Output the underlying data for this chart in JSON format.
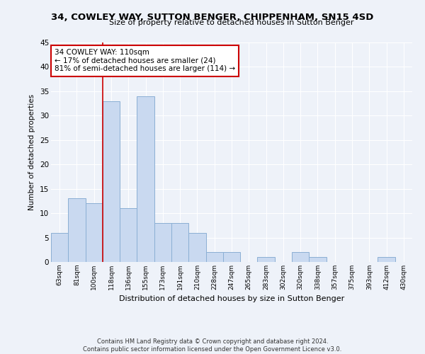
{
  "title": "34, COWLEY WAY, SUTTON BENGER, CHIPPENHAM, SN15 4SD",
  "subtitle": "Size of property relative to detached houses in Sutton Benger",
  "xlabel": "Distribution of detached houses by size in Sutton Benger",
  "ylabel": "Number of detached properties",
  "categories": [
    "63sqm",
    "81sqm",
    "100sqm",
    "118sqm",
    "136sqm",
    "155sqm",
    "173sqm",
    "191sqm",
    "210sqm",
    "228sqm",
    "247sqm",
    "265sqm",
    "283sqm",
    "302sqm",
    "320sqm",
    "338sqm",
    "357sqm",
    "375sqm",
    "393sqm",
    "412sqm",
    "430sqm"
  ],
  "values": [
    6,
    13,
    12,
    33,
    11,
    34,
    8,
    8,
    6,
    2,
    2,
    0,
    1,
    0,
    2,
    1,
    0,
    0,
    0,
    1,
    0
  ],
  "bar_color": "#c9d9f0",
  "bar_edge_color": "#8bafd4",
  "ylim": [
    0,
    45
  ],
  "yticks": [
    0,
    5,
    10,
    15,
    20,
    25,
    30,
    35,
    40,
    45
  ],
  "vline_x": 2.5,
  "vline_color": "#cc0000",
  "annotation_text1": "34 COWLEY WAY: 110sqm",
  "annotation_text2": "← 17% of detached houses are smaller (24)",
  "annotation_text3": "81% of semi-detached houses are larger (114) →",
  "annotation_box_color": "#ffffff",
  "annotation_box_edge_color": "#cc0000",
  "footer1": "Contains HM Land Registry data © Crown copyright and database right 2024.",
  "footer2": "Contains public sector information licensed under the Open Government Licence v3.0.",
  "background_color": "#eef2f9",
  "grid_color": "#ffffff",
  "title_fontsize": 9.5,
  "subtitle_fontsize": 8,
  "ylabel_fontsize": 7.5,
  "xlabel_fontsize": 8,
  "ytick_fontsize": 7.5,
  "xtick_fontsize": 6.5,
  "annotation_fontsize": 7.5,
  "footer_fontsize": 6
}
